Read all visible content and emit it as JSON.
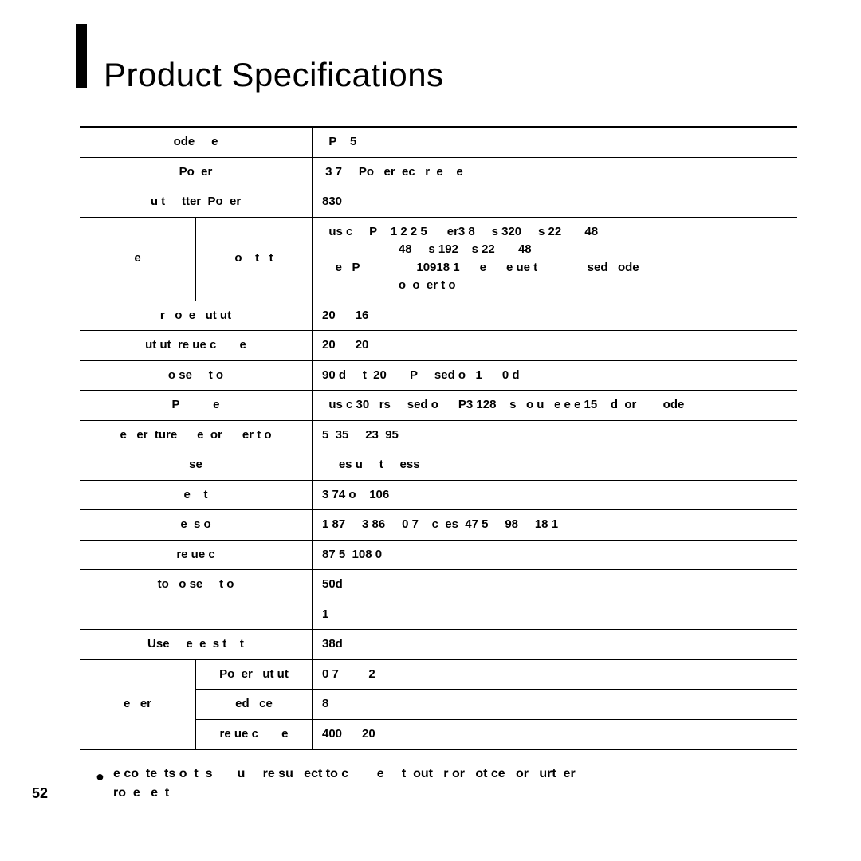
{
  "title": "Product Specifications",
  "page_number": "52",
  "rows": [
    {
      "label": "ode     e",
      "value": "  P    5"
    },
    {
      "label": "Po  er",
      "value": " 3 7     Po   er  ec   r  e    e"
    },
    {
      "label": "u t     tter  Po  er",
      "value": "830"
    },
    {
      "label_a": "e",
      "label_b": "o    t   t",
      "value": "  us c     P    1 2 2 5      er3 8     s 320     s 22       48\n                       48     s 192    s 22       48\n    e   P                 10918 1      e      e ue t               sed   ode\n                       o  o  er t o"
    },
    {
      "label": "r   o  e   ut ut",
      "value": "20      16"
    },
    {
      "label": "ut ut  re ue c       e",
      "value": "20      20"
    },
    {
      "label": "o se     t o",
      "value": "90 d     t  20       P     sed o   1      0 d"
    },
    {
      "label": "P          e",
      "value": "  us c 30   rs     sed o      P3 128    s   o u   e e e 15    d  or        ode"
    },
    {
      "label": "e   er  ture      e  or      er t o",
      "value": "5  35     23  95"
    },
    {
      "label": "se",
      "value": "     es u     t     ess"
    },
    {
      "label": "e    t",
      "value": "3 74 o    106"
    },
    {
      "label": "e  s o",
      "value": "1 87     3 86     0 7    c  es  47 5     98     18 1"
    },
    {
      "label": "re ue c",
      "value": "87 5  108 0"
    },
    {
      "label": "to   o se     t o",
      "value": "50d"
    },
    {
      "label": "",
      "value": "1"
    },
    {
      "label": "Use     e  e  s t    t",
      "value": "38d"
    },
    {
      "label_a": "e   er",
      "label_b": "Po  er   ut ut",
      "value": "0 7         2",
      "rowspan_a": 3
    },
    {
      "label_b": "ed   ce",
      "value": "8",
      "skip_a": true
    },
    {
      "label_b": "re ue c       e",
      "value": "400      20",
      "skip_a": true
    }
  ],
  "footnote": "e co  te  ts o  t  s       u     re su   ect to c        e     t  out   r or   ot ce   or   urt  er\nro  e   e  t"
}
